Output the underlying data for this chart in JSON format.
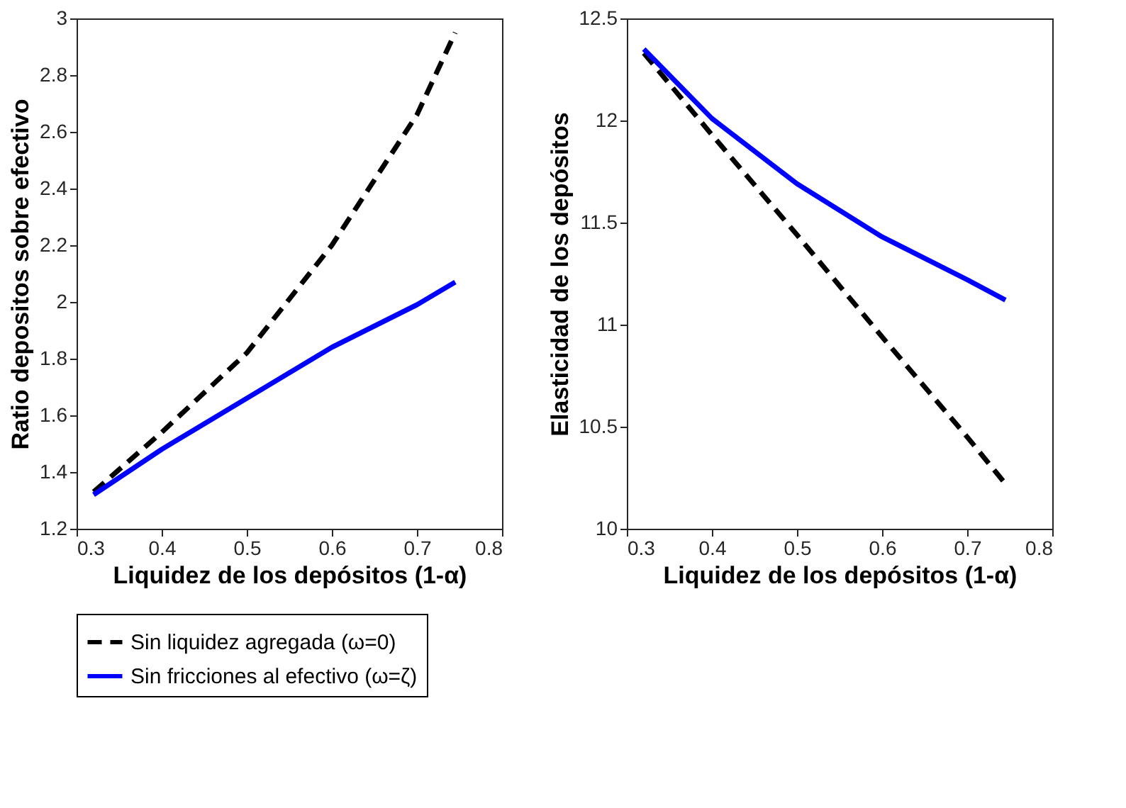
{
  "chart_data": [
    {
      "type": "line",
      "xlabel": "Liquidez de los depósitos (1-α)",
      "ylabel": "Ratio depositos sobre efectivo",
      "xlim": [
        0.3,
        0.8
      ],
      "xticks": [
        0.3,
        0.4,
        0.5,
        0.6,
        0.7,
        0.8
      ],
      "ylim": [
        1.2,
        3
      ],
      "yticks": [
        1.2,
        1.4,
        1.6,
        1.8,
        2,
        2.2,
        2.4,
        2.6,
        2.8,
        3
      ],
      "grid": false,
      "legend": "bottom",
      "marker": "none",
      "x": [
        0.32,
        0.4,
        0.5,
        0.6,
        0.7,
        0.745
      ],
      "series": [
        {
          "name": "Sin liquidez agregada (ω=0)",
          "color": "#000000",
          "line_style": "dashed",
          "values": [
            1.33,
            1.54,
            1.82,
            2.2,
            2.66,
            2.95
          ]
        },
        {
          "name": "Sin fricciones al efectivo (ω=ζ)",
          "color": "#0000ff",
          "line_style": "solid",
          "values": [
            1.32,
            1.48,
            1.66,
            1.84,
            1.99,
            2.07
          ]
        }
      ]
    },
    {
      "type": "line",
      "xlabel": "Liquidez de los depósitos (1-α)",
      "ylabel": "Elasticidad de los depósitos",
      "xlim": [
        0.3,
        0.8
      ],
      "xticks": [
        0.3,
        0.4,
        0.5,
        0.6,
        0.7,
        0.8
      ],
      "ylim": [
        10,
        12.5
      ],
      "yticks": [
        10,
        10.5,
        11,
        11.5,
        12,
        12.5
      ],
      "grid": false,
      "legend": "bottom",
      "marker": "none",
      "x": [
        0.32,
        0.4,
        0.5,
        0.6,
        0.7,
        0.745
      ],
      "series": [
        {
          "name": "Sin liquidez agregada (ω=0)",
          "color": "#000000",
          "line_style": "dashed",
          "values": [
            12.33,
            11.93,
            11.44,
            10.94,
            10.45,
            10.22
          ]
        },
        {
          "name": "Sin fricciones al efectivo (ω=ζ)",
          "color": "#0000ff",
          "line_style": "solid",
          "values": [
            12.35,
            12.01,
            11.69,
            11.43,
            11.22,
            11.12
          ]
        }
      ]
    }
  ]
}
